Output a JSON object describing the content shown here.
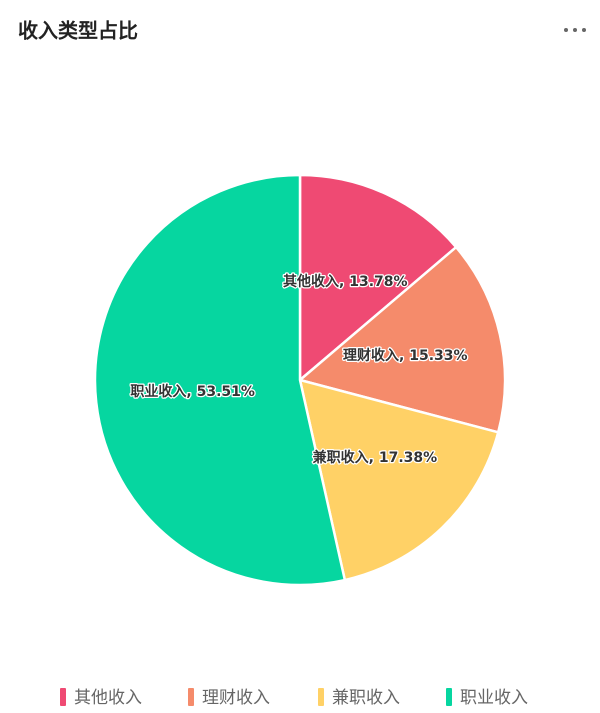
{
  "chart_data": {
    "type": "pie",
    "title": "收入类型占比",
    "categories": [
      "其他收入",
      "理财收入",
      "兼职收入",
      "职业收入"
    ],
    "values": [
      13.78,
      15.33,
      17.38,
      53.51
    ],
    "value_labels": [
      "其他收入, 13.78%",
      "理财收入, 15.33%",
      "兼职收入, 17.38%",
      "职业收入, 53.51%"
    ],
    "colors": [
      "#ef4a73",
      "#f58b6b",
      "#ffd166",
      "#06d6a0"
    ],
    "legend": "bottom"
  }
}
